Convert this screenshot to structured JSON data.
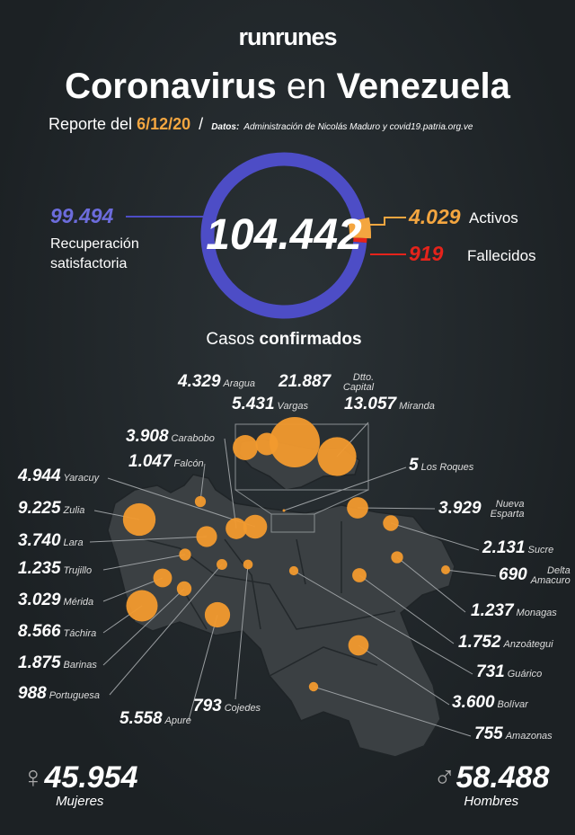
{
  "header": {
    "brand": "runrunes",
    "title_a": "Coronavirus",
    "title_b": "en",
    "title_c": "Venezuela",
    "report": "Reporte del",
    "date": "6/12/20",
    "sep": "/",
    "source_label": "Datos:",
    "source": "Administración de Nicolás Maduro y covid19.patria.org.ve"
  },
  "donut": {
    "total": {
      "value": 104442,
      "label": "104.442"
    },
    "caption_a": "Casos",
    "caption_b": "confirmados",
    "segments": [
      {
        "name": "Recuperación satisfactoria",
        "value": 99494,
        "label": "99.494",
        "color": "#4d4dc6"
      },
      {
        "name": "Activos",
        "value": 4029,
        "label": "4.029",
        "color": "#f4a640"
      },
      {
        "name": "Fallecidos",
        "value": 919,
        "label": "919",
        "color": "#e5231b"
      }
    ]
  },
  "map": {
    "color": "#f29a2e",
    "states": [
      {
        "name": "Aragua",
        "value": 4329,
        "label": "4.329"
      },
      {
        "name": "Vargas",
        "value": 5431,
        "label": "5.431"
      },
      {
        "name": "Dtto. Capital",
        "value": 21887,
        "label": "21.887"
      },
      {
        "name": "Miranda",
        "value": 13057,
        "label": "13.057"
      },
      {
        "name": "Carabobo",
        "value": 3908,
        "label": "3.908"
      },
      {
        "name": "Falcón",
        "value": 1047,
        "label": "1.047"
      },
      {
        "name": "Los Roques",
        "value": 5,
        "label": "5"
      },
      {
        "name": "Yaracuy",
        "value": 4944,
        "label": "4.944"
      },
      {
        "name": "Nueva Esparta",
        "value": 3929,
        "label": "3.929"
      },
      {
        "name": "Zulia",
        "value": 9225,
        "label": "9.225"
      },
      {
        "name": "Sucre",
        "value": 2131,
        "label": "2.131"
      },
      {
        "name": "Lara",
        "value": 3740,
        "label": "3.740"
      },
      {
        "name": "Delta Amacuro",
        "value": 690,
        "label": "690"
      },
      {
        "name": "Trujillo",
        "value": 1235,
        "label": "1.235"
      },
      {
        "name": "Mérida",
        "value": 3029,
        "label": "3.029"
      },
      {
        "name": "Monagas",
        "value": 1237,
        "label": "1.237"
      },
      {
        "name": "Táchira",
        "value": 8566,
        "label": "8.566"
      },
      {
        "name": "Anzoátegui",
        "value": 1752,
        "label": "1.752"
      },
      {
        "name": "Barinas",
        "value": 1875,
        "label": "1.875"
      },
      {
        "name": "Guárico",
        "value": 731,
        "label": "731"
      },
      {
        "name": "Portuguesa",
        "value": 988,
        "label": "988"
      },
      {
        "name": "Apure",
        "value": 5558,
        "label": "5.558"
      },
      {
        "name": "Cojedes",
        "value": 793,
        "label": "793"
      },
      {
        "name": "Bolívar",
        "value": 3600,
        "label": "3.600"
      },
      {
        "name": "Amazonas",
        "value": 755,
        "label": "755"
      }
    ]
  },
  "gender": [
    {
      "symbol": "♀",
      "value": 45954,
      "label": "45.954",
      "name": "Mujeres"
    },
    {
      "symbol": "♂",
      "value": 58488,
      "label": "58.488",
      "name": "Hombres"
    }
  ]
}
